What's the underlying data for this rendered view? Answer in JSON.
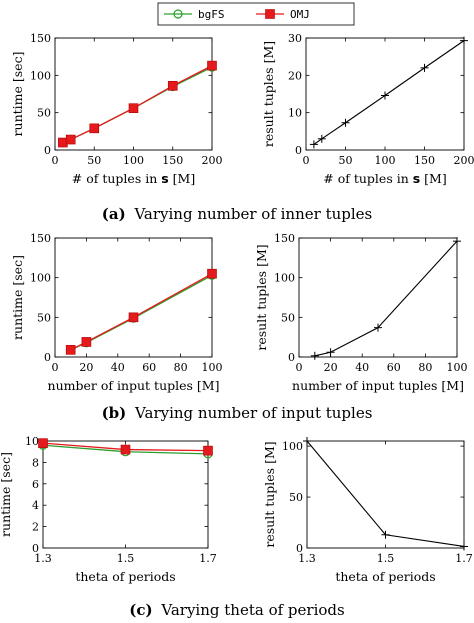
{
  "legend": {
    "items": [
      {
        "name": "bgFS",
        "color": "#2ca02c",
        "marker": "circle"
      },
      {
        "name": "OMJ",
        "color": "#e41a1c",
        "marker": "square"
      }
    ]
  },
  "captions": {
    "a_letter": "(a)",
    "a_text": "Varying number of inner tuples",
    "b_letter": "(b)",
    "b_text": "Varying number of input tuples",
    "c_letter": "(c)",
    "c_text": "Varying theta of periods"
  },
  "chart_data": [
    {
      "id": "a-left",
      "type": "line",
      "xlabel_pre": "# of tuples in ",
      "xlabel_bold": "s",
      "xlabel_post": " [M]",
      "ylabel": "runtime [sec]",
      "xlim": [
        0,
        200
      ],
      "ylim": [
        0,
        150
      ],
      "xticks": [
        0,
        50,
        100,
        150,
        200
      ],
      "yticks": [
        0,
        50,
        100,
        150
      ],
      "grid": false,
      "series": [
        {
          "name": "bgFS",
          "color": "#2ca02c",
          "marker": "circle",
          "x": [
            10,
            20,
            50,
            100,
            150,
            200
          ],
          "y": [
            10,
            14,
            29,
            56,
            85,
            111
          ]
        },
        {
          "name": "OMJ",
          "color": "#e41a1c",
          "marker": "square",
          "x": [
            10,
            20,
            50,
            100,
            150,
            200
          ],
          "y": [
            10,
            14,
            29,
            56,
            86,
            113
          ]
        }
      ]
    },
    {
      "id": "a-right",
      "type": "line",
      "xlabel_pre": "# of tuples in ",
      "xlabel_bold": "s",
      "xlabel_post": " [M]",
      "ylabel": "result tuples [M]",
      "xlim": [
        0,
        200
      ],
      "ylim": [
        0,
        30
      ],
      "xticks": [
        0,
        50,
        100,
        150,
        200
      ],
      "yticks": [
        0,
        10,
        20,
        30
      ],
      "grid": false,
      "series": [
        {
          "color": "#000000",
          "marker": "plus",
          "x": [
            10,
            20,
            50,
            100,
            150,
            200
          ],
          "y": [
            1.5,
            3,
            7.3,
            14.6,
            22,
            29.3
          ]
        }
      ]
    },
    {
      "id": "b-left",
      "type": "line",
      "xlabel_pre": "number of input tuples [M]",
      "xlabel_bold": "",
      "xlabel_post": "",
      "ylabel": "runtime [sec]",
      "xlim": [
        0,
        100
      ],
      "ylim": [
        0,
        150
      ],
      "xticks": [
        0,
        20,
        40,
        60,
        80,
        100
      ],
      "yticks": [
        0,
        50,
        100,
        150
      ],
      "grid": false,
      "series": [
        {
          "name": "bgFS",
          "color": "#2ca02c",
          "marker": "circle",
          "x": [
            10,
            20,
            50,
            100
          ],
          "y": [
            9,
            18,
            49,
            103
          ]
        },
        {
          "name": "OMJ",
          "color": "#e41a1c",
          "marker": "square",
          "x": [
            10,
            20,
            50,
            100
          ],
          "y": [
            9,
            19,
            50,
            105
          ]
        }
      ]
    },
    {
      "id": "b-right",
      "type": "line",
      "xlabel_pre": "number of input tuples [M]",
      "xlabel_bold": "",
      "xlabel_post": "",
      "ylabel": "result tuples [M]",
      "xlim": [
        0,
        100
      ],
      "ylim": [
        0,
        150
      ],
      "xticks": [
        0,
        20,
        40,
        60,
        80,
        100
      ],
      "yticks": [
        0,
        50,
        100,
        150
      ],
      "grid": false,
      "series": [
        {
          "color": "#000000",
          "marker": "plus",
          "x": [
            10,
            20,
            50,
            100
          ],
          "y": [
            1.5,
            6,
            37,
            146
          ]
        }
      ]
    },
    {
      "id": "c-left",
      "type": "line",
      "xlabel_pre": "theta of periods",
      "xlabel_bold": "",
      "xlabel_post": "",
      "ylabel": "runtime [sec]",
      "xlim": [
        1.3,
        1.7
      ],
      "ylim": [
        0,
        10
      ],
      "xticks": [
        1.3,
        1.5,
        1.7
      ],
      "yticks": [
        0,
        2,
        4,
        6,
        8,
        10
      ],
      "grid": false,
      "series": [
        {
          "name": "bgFS",
          "color": "#2ca02c",
          "marker": "circle",
          "x": [
            1.3,
            1.5,
            1.7
          ],
          "y": [
            9.6,
            9.0,
            8.8
          ]
        },
        {
          "name": "OMJ",
          "color": "#e41a1c",
          "marker": "square",
          "x": [
            1.3,
            1.5,
            1.7
          ],
          "y": [
            9.8,
            9.2,
            9.1
          ]
        }
      ]
    },
    {
      "id": "c-right",
      "type": "line",
      "xlabel_pre": "theta of periods",
      "xlabel_bold": "",
      "xlabel_post": "",
      "ylabel": "result tuples [M]",
      "xlim": [
        1.3,
        1.7
      ],
      "ylim": [
        0,
        105
      ],
      "xticks": [
        1.3,
        1.5,
        1.7
      ],
      "yticks": [
        0,
        50,
        100
      ],
      "grid": false,
      "series": [
        {
          "color": "#000000",
          "marker": "plus",
          "x": [
            1.3,
            1.5,
            1.7
          ],
          "y": [
            105,
            13,
            1.5
          ]
        }
      ]
    }
  ]
}
